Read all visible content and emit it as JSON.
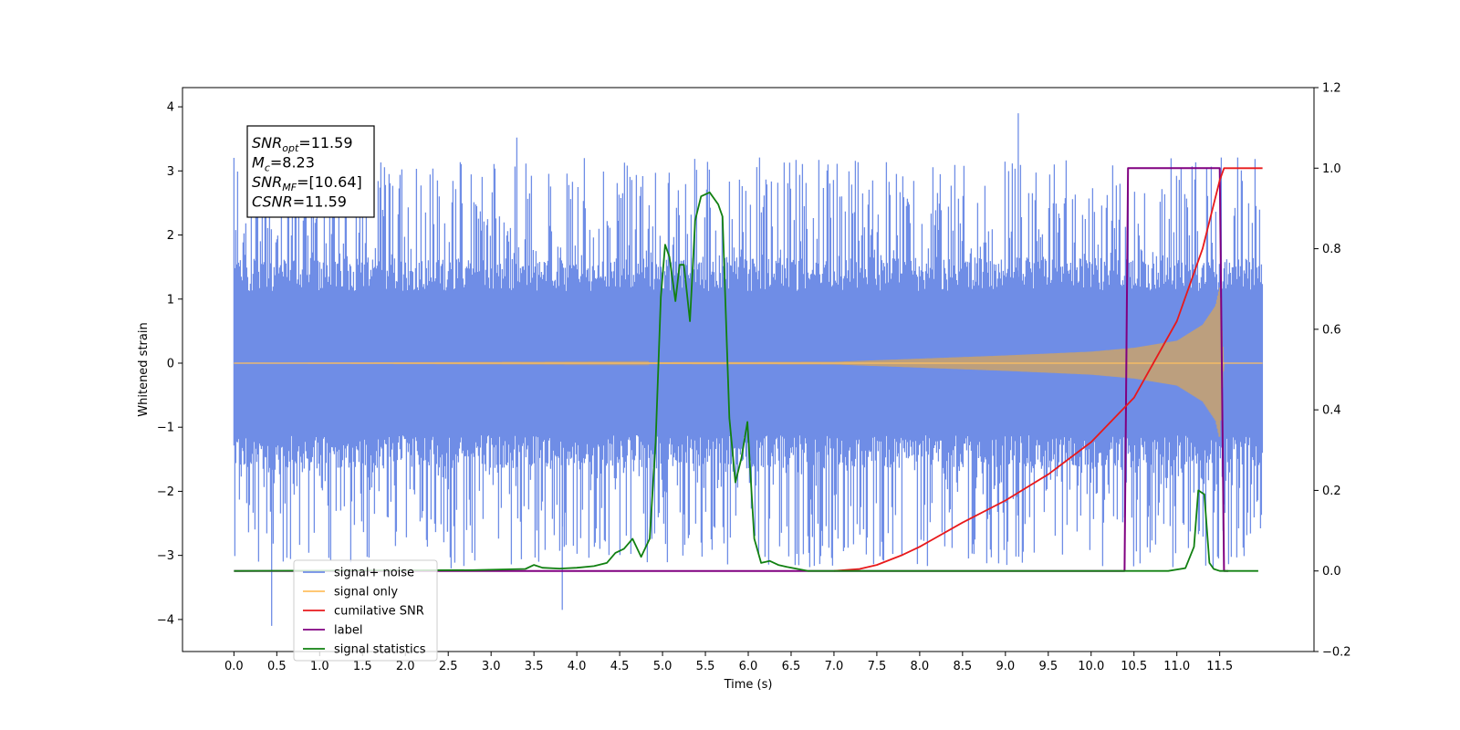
{
  "chart_data": {
    "type": "line",
    "title": "",
    "xlabel": "Time (s)",
    "ylabel": "Whitened strain",
    "xlim": [
      -0.6,
      12.6
    ],
    "ylim": [
      -4.5,
      4.3
    ],
    "y2lim": [
      -0.2,
      1.2
    ],
    "grid": false,
    "x_ticks": [
      0.0,
      0.5,
      1.0,
      1.5,
      2.0,
      2.5,
      3.0,
      3.5,
      4.0,
      4.5,
      5.0,
      5.5,
      6.0,
      6.5,
      7.0,
      7.5,
      8.0,
      8.5,
      9.0,
      9.5,
      10.0,
      10.5,
      11.0,
      11.5
    ],
    "x_tick_labels": [
      "0.0",
      "0.5",
      "1.0",
      "1.5",
      "2.0",
      "2.5",
      "3.0",
      "3.5",
      "4.0",
      "4.5",
      "5.0",
      "5.5",
      "6.0",
      "6.5",
      "7.0",
      "7.5",
      "8.0",
      "8.5",
      "9.0",
      "9.5",
      "10.0",
      "10.5",
      "11.0",
      "11.5"
    ],
    "y_ticks": [
      -4,
      -3,
      -2,
      -1,
      0,
      1,
      2,
      3,
      4
    ],
    "y_tick_labels": [
      "−4",
      "−3",
      "−2",
      "−1",
      "0",
      "1",
      "2",
      "3",
      "4"
    ],
    "y2_ticks": [
      -0.2,
      0.0,
      0.2,
      0.4,
      0.6,
      0.8,
      1.0,
      1.2
    ],
    "y2_tick_labels": [
      "−0.2",
      "0.0",
      "0.2",
      "0.4",
      "0.6",
      "0.8",
      "1.0",
      "1.2"
    ],
    "annotation": {
      "lines": [
        {
          "sym": "SNR",
          "sub": "opt",
          "value": "=11.59"
        },
        {
          "sym": "M",
          "sub": "c",
          "value": "=8.23"
        },
        {
          "sym": "SNR",
          "sub": "MF",
          "value": "=[10.64]"
        },
        {
          "sym": "CSNR",
          "sub": "",
          "value": "=11.59"
        }
      ],
      "position": "top-left"
    },
    "legend": {
      "position": "bottom-left",
      "entries": [
        {
          "label": "signal+ noise",
          "color": "#6f8de6"
        },
        {
          "label": "signal only",
          "color": "#ffc060"
        },
        {
          "label": "cumilative SNR",
          "color": "#e8191b"
        },
        {
          "label": "label",
          "color": "#800080"
        },
        {
          "label": "signal statistics",
          "color": "#118011"
        }
      ],
      "hidden_behind": [
        "signal only"
      ]
    },
    "series": [
      {
        "name": "signal+ noise",
        "axis": "left",
        "color": "#6f8de6",
        "x_range": [
          0.0,
          12.0
        ],
        "band_typical": [
          -1.5,
          1.5
        ],
        "band_peaks": [
          -3.3,
          3.4
        ],
        "extremes": [
          {
            "x": 0.44,
            "y": -4.1
          },
          {
            "x": 3.83,
            "y": -3.85
          },
          {
            "x": 9.15,
            "y": 3.9
          },
          {
            "x": 3.3,
            "y": 3.52
          }
        ]
      },
      {
        "name": "signal only",
        "axis": "left",
        "color": "#ffc060",
        "x_range": [
          0.0,
          12.0
        ],
        "envelope": {
          "x": [
            0.0,
            7.0,
            8.0,
            9.0,
            10.0,
            10.5,
            11.0,
            11.3,
            11.45,
            11.5,
            11.55,
            12.0
          ],
          "amp": [
            0.0,
            0.02,
            0.07,
            0.12,
            0.18,
            0.24,
            0.35,
            0.6,
            0.9,
            1.2,
            0.0,
            0.0
          ]
        }
      },
      {
        "name": "cumilative SNR",
        "axis": "right",
        "color": "#e8191b",
        "x": [
          7.0,
          7.3,
          7.5,
          7.8,
          8.0,
          8.5,
          9.0,
          9.5,
          10.0,
          10.5,
          11.0,
          11.3,
          11.5,
          11.55,
          12.0
        ],
        "y": [
          0.0,
          0.005,
          0.015,
          0.04,
          0.06,
          0.12,
          0.175,
          0.24,
          0.32,
          0.43,
          0.62,
          0.8,
          0.97,
          1.0,
          1.0
        ]
      },
      {
        "name": "label",
        "axis": "right",
        "color": "#800080",
        "x": [
          0.0,
          10.39,
          10.43,
          11.5,
          11.55,
          11.6
        ],
        "y": [
          0.0,
          0.0,
          1.0,
          1.0,
          0.0,
          0.0
        ]
      },
      {
        "name": "signal statistics",
        "axis": "right",
        "color": "#118011",
        "x": [
          0.0,
          2.8,
          3.4,
          3.5,
          3.6,
          3.8,
          4.0,
          4.2,
          4.35,
          4.45,
          4.55,
          4.65,
          4.75,
          4.85,
          4.92,
          4.98,
          5.03,
          5.08,
          5.15,
          5.2,
          5.25,
          5.32,
          5.38,
          5.45,
          5.55,
          5.65,
          5.7,
          5.78,
          5.85,
          5.92,
          5.99,
          6.07,
          6.15,
          6.25,
          6.35,
          6.45,
          6.7,
          10.9,
          11.1,
          11.2,
          11.25,
          11.32,
          11.38,
          11.43,
          11.5,
          11.95
        ],
        "y": [
          0.0,
          0.002,
          0.005,
          0.015,
          0.008,
          0.006,
          0.008,
          0.012,
          0.02,
          0.045,
          0.055,
          0.08,
          0.035,
          0.08,
          0.32,
          0.68,
          0.81,
          0.78,
          0.67,
          0.76,
          0.76,
          0.62,
          0.87,
          0.93,
          0.94,
          0.91,
          0.88,
          0.38,
          0.22,
          0.28,
          0.37,
          0.08,
          0.02,
          0.025,
          0.015,
          0.01,
          0.0,
          0.0,
          0.007,
          0.06,
          0.2,
          0.19,
          0.02,
          0.005,
          0.0,
          0.0
        ]
      }
    ]
  }
}
